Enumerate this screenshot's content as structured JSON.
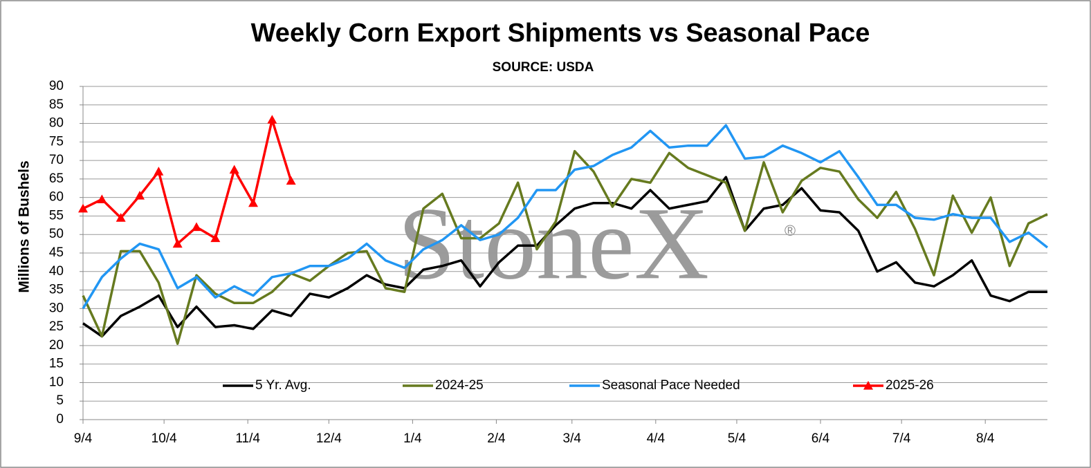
{
  "chart_data": {
    "type": "line",
    "title": "Weekly Corn Export Shipments vs Seasonal Pace",
    "subtitle": "SOURCE: USDA",
    "y_label": "Millions of Bushels",
    "watermark": "StoneX",
    "watermark_mark": "®",
    "x": [
      0,
      7,
      14,
      21,
      28,
      35,
      42,
      49,
      56,
      63,
      70,
      77,
      84,
      91,
      98,
      105,
      112,
      119,
      126,
      133,
      140,
      147,
      154,
      161,
      168,
      175,
      182,
      189,
      196,
      203,
      210,
      217,
      224,
      231,
      238,
      245,
      252,
      259,
      266,
      273,
      280,
      287,
      294,
      301,
      308,
      315,
      322,
      329,
      336,
      343,
      350,
      357
    ],
    "xlim": [
      0,
      357
    ],
    "xticks": [
      {
        "value": 0,
        "label": "9/4"
      },
      {
        "value": 30,
        "label": "10/4"
      },
      {
        "value": 61,
        "label": "11/4"
      },
      {
        "value": 91,
        "label": "12/4"
      },
      {
        "value": 122,
        "label": "1/4"
      },
      {
        "value": 153,
        "label": "2/4"
      },
      {
        "value": 181,
        "label": "3/4"
      },
      {
        "value": 212,
        "label": "4/4"
      },
      {
        "value": 242,
        "label": "5/4"
      },
      {
        "value": 273,
        "label": "6/4"
      },
      {
        "value": 303,
        "label": "7/4"
      },
      {
        "value": 334,
        "label": "8/4"
      }
    ],
    "ylim": [
      0,
      90
    ],
    "yticks": [
      0,
      5,
      10,
      15,
      20,
      25,
      30,
      35,
      40,
      45,
      50,
      55,
      60,
      65,
      70,
      75,
      80,
      85,
      90
    ],
    "grid": true,
    "series": [
      {
        "name": "5 Yr. Avg.",
        "color": "#000000",
        "values": [
          26,
          22.5,
          28,
          30.5,
          33.5,
          25,
          30.5,
          25,
          25.5,
          24.5,
          29.5,
          28,
          34,
          33,
          35.5,
          39,
          36.5,
          35.5,
          40.5,
          41.5,
          43,
          36,
          42.5,
          47,
          47,
          52.5,
          57,
          58.5,
          58.5,
          57,
          62,
          57,
          58,
          59,
          65.5,
          51,
          57,
          58,
          62.5,
          56.5,
          56,
          51,
          40,
          42.5,
          37,
          36,
          39,
          43,
          33.5,
          32,
          34.5,
          34.5
        ]
      },
      {
        "name": "2024-25",
        "color": "#667a1f",
        "values": [
          33.5,
          22.5,
          45.5,
          45.5,
          37,
          20.5,
          39,
          34,
          31.5,
          31.5,
          34.5,
          39.5,
          37.5,
          41.5,
          45,
          45.5,
          35.5,
          34.5,
          57,
          61,
          49,
          49,
          53,
          64,
          46,
          53.5,
          72.5,
          67,
          57.5,
          65,
          64,
          72,
          68,
          66,
          64,
          51,
          69.5,
          56,
          64.5,
          68,
          67,
          59.5,
          54.5,
          61.5,
          51.5,
          39,
          60.5,
          50.5,
          60,
          41.5,
          53,
          55.5
        ]
      },
      {
        "name": "Seasonal Pace Needed",
        "color": "#2196f3",
        "values": [
          30,
          38.5,
          43.5,
          47.5,
          46,
          35.5,
          38.5,
          33,
          36,
          33.5,
          38.5,
          39.5,
          41.5,
          41.5,
          43.5,
          47.5,
          43,
          41,
          46,
          48.5,
          52.5,
          48.5,
          50,
          54.5,
          62,
          62,
          67.5,
          68.5,
          71.5,
          73.5,
          78,
          73.5,
          74,
          74,
          79.5,
          70.5,
          71,
          74,
          72,
          69.5,
          72.5,
          65.5,
          58,
          58,
          54.5,
          54,
          55.5,
          54.5,
          54.5,
          48,
          50.5,
          46.5
        ]
      },
      {
        "name": "2025-26",
        "color": "#ff0000",
        "marker": "triangle",
        "values": [
          57,
          59.5,
          54.5,
          60.5,
          67,
          47.5,
          52,
          49,
          67.5,
          58.5,
          81,
          64.5,
          null,
          null,
          null,
          null,
          null,
          null,
          null,
          null,
          null,
          null,
          null,
          null,
          null,
          null,
          null,
          null,
          null,
          null,
          null,
          null,
          null,
          null,
          null,
          null,
          null,
          null,
          null,
          null,
          null,
          null,
          null,
          null,
          null,
          null,
          null,
          null,
          null,
          null,
          null,
          null
        ]
      }
    ]
  }
}
